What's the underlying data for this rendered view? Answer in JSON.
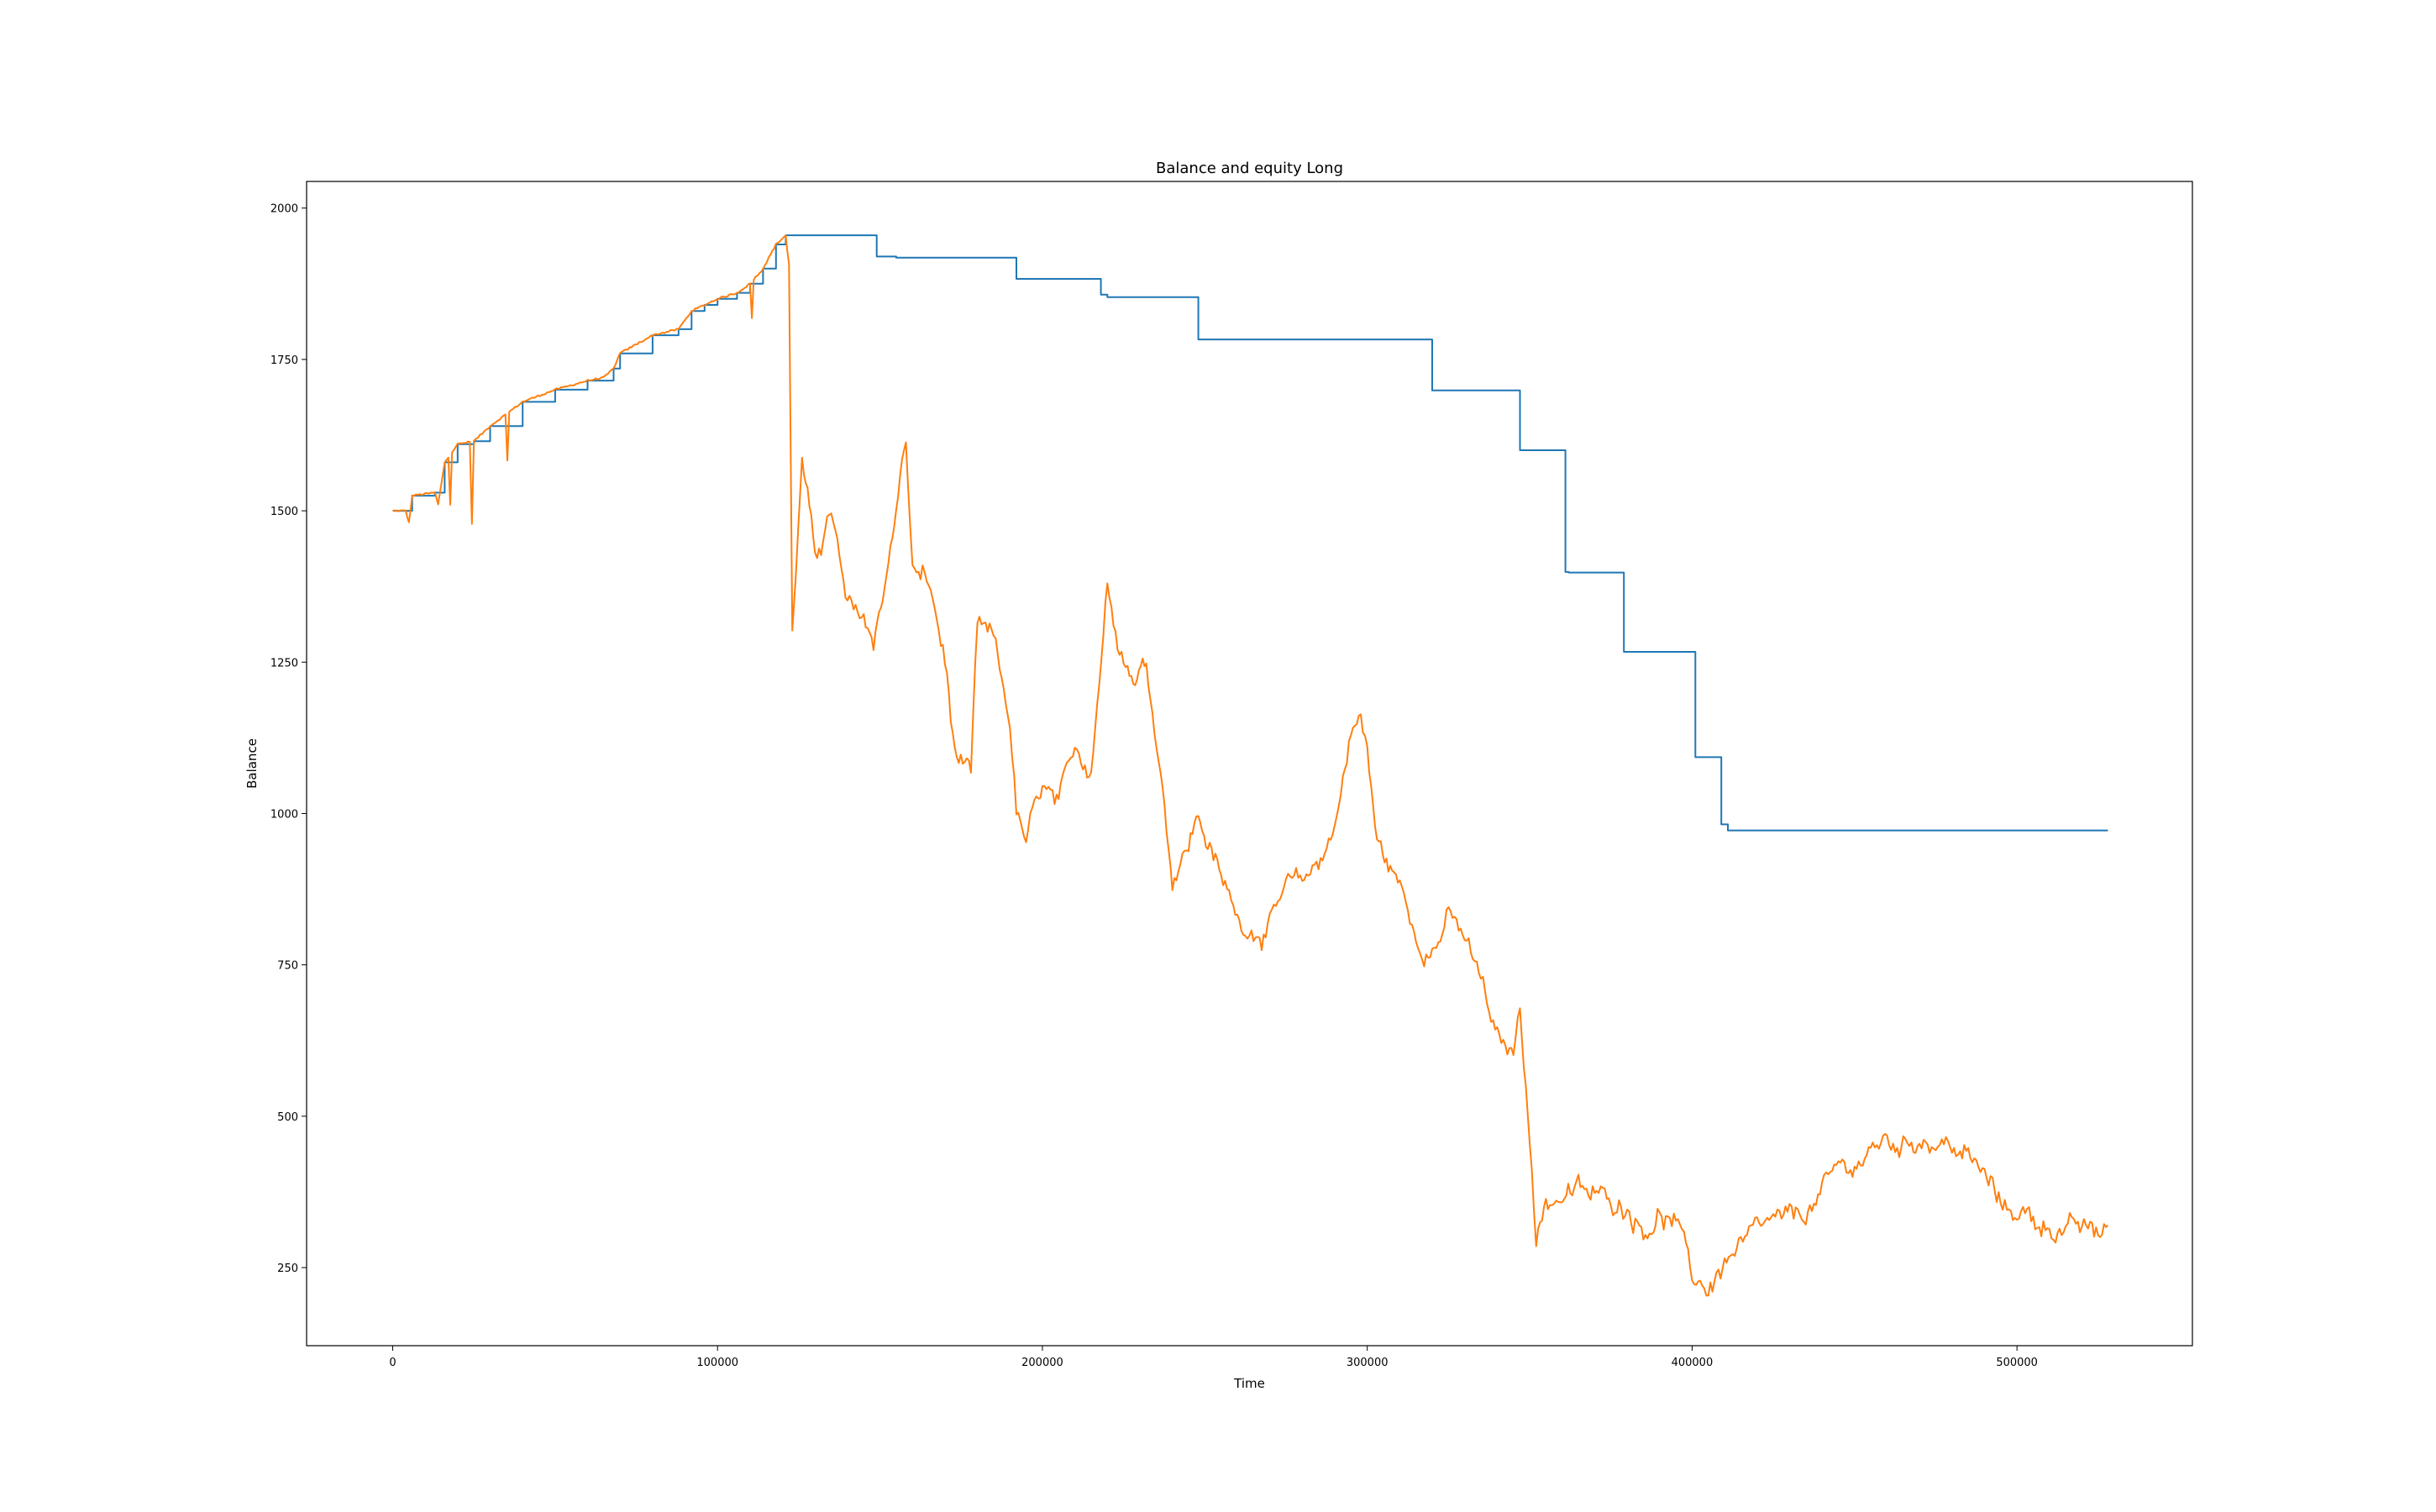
{
  "chart_data": {
    "type": "line",
    "title": "Balance and equity Long",
    "xlabel": "Time",
    "ylabel": "Balance",
    "xlim": [
      -26500,
      554000
    ],
    "ylim": [
      121,
      2044
    ],
    "xticks": [
      0,
      100000,
      200000,
      300000,
      400000,
      500000
    ],
    "yticks": [
      250,
      500,
      750,
      1000,
      1250,
      1500,
      1750,
      2000
    ],
    "grid": false,
    "series": [
      {
        "name": "",
        "color": "#1f77b4",
        "style": "step",
        "x": [
          0,
          2000,
          4000,
          6000,
          13000,
          16000,
          20000,
          25000,
          30000,
          40000,
          50000,
          60000,
          68000,
          70000,
          80000,
          88000,
          92000,
          96000,
          100000,
          106000,
          110000,
          114000,
          118000,
          121000,
          149000,
          155000,
          192000,
          218000,
          220000,
          248000,
          320000,
          347000,
          361000,
          362000,
          379000,
          401000,
          409000,
          411000,
          528000
        ],
        "y": [
          1500,
          1500,
          1500,
          1525,
          1530,
          1580,
          1610,
          1615,
          1640,
          1680,
          1700,
          1715,
          1735,
          1760,
          1790,
          1800,
          1830,
          1840,
          1850,
          1860,
          1875,
          1900,
          1940,
          1955,
          1920,
          1918,
          1883,
          1857,
          1853,
          1783,
          1699,
          1600,
          1399,
          1398,
          1267,
          1093,
          982,
          972,
          972
        ]
      },
      {
        "name": "",
        "color": "#ff7f0e",
        "style": "noisy",
        "x": [
          0,
          4000,
          5000,
          6000,
          13000,
          14000,
          16000,
          20000,
          25000,
          30000,
          40000,
          50000,
          60000,
          65000,
          68000,
          70000,
          80000,
          88000,
          92000,
          96000,
          100000,
          106000,
          110000,
          114000,
          118000,
          121000,
          122000,
          123000,
          126000,
          130000,
          135000,
          140000,
          145000,
          148000,
          152000,
          155000,
          158000,
          160000,
          165000,
          170000,
          173000,
          178000,
          180000,
          185000,
          190000,
          192000,
          195000,
          200000,
          205000,
          210000,
          215000,
          220000,
          225000,
          228000,
          232000,
          237000,
          240000,
          245000,
          248000,
          255000,
          260000,
          265000,
          270000,
          275000,
          280000,
          285000,
          290000,
          295000,
          298000,
          300000,
          303000,
          310000,
          315000,
          320000,
          325000,
          330000,
          335000,
          340000,
          345000,
          347000,
          350000,
          352000,
          355000,
          360000,
          365000,
          370000,
          375000,
          380000,
          385000,
          390000,
          395000,
          400000,
          405000,
          410000,
          415000,
          420000,
          425000,
          430000,
          435000,
          440000,
          445000,
          450000,
          455000,
          460000,
          465000,
          470000,
          475000,
          480000,
          485000,
          490000,
          495000,
          500000,
          505000,
          510000,
          515000,
          520000,
          525000,
          528000
        ],
        "y": [
          1500,
          1500,
          1480,
          1525,
          1530,
          1510,
          1580,
          1610,
          1615,
          1640,
          1680,
          1700,
          1715,
          1720,
          1735,
          1760,
          1790,
          1800,
          1830,
          1840,
          1850,
          1860,
          1875,
          1900,
          1940,
          1955,
          1900,
          1300,
          1580,
          1420,
          1500,
          1330,
          1320,
          1280,
          1400,
          1500,
          1620,
          1400,
          1380,
          1250,
          1100,
          1050,
          1300,
          1280,
          1150,
          1000,
          950,
          1040,
          1000,
          1100,
          1080,
          1380,
          1270,
          1230,
          1250,
          1050,
          900,
          950,
          1000,
          890,
          830,
          810,
          820,
          870,
          880,
          920,
          980,
          1140,
          1160,
          1100,
          950,
          880,
          800,
          780,
          830,
          790,
          720,
          620,
          600,
          680,
          480,
          300,
          360,
          370,
          375,
          365,
          360,
          355,
          320,
          340,
          325,
          230,
          215,
          260,
          280,
          300,
          320,
          320,
          340,
          370,
          410,
          420,
          440,
          460,
          450,
          470,
          460,
          450,
          430,
          400,
          350,
          345,
          330,
          320,
          315,
          310,
          300,
          320
        ]
      }
    ]
  }
}
